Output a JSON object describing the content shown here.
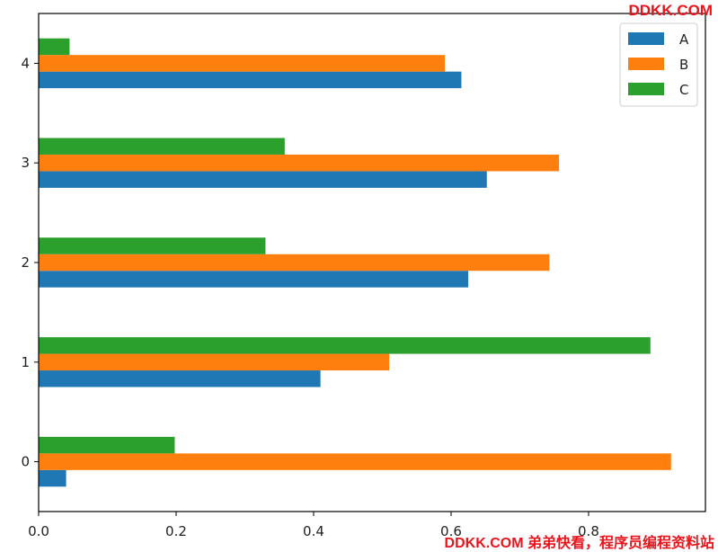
{
  "chart_data": {
    "type": "bar",
    "orientation": "horizontal",
    "categories": [
      "0",
      "1",
      "2",
      "3",
      "4"
    ],
    "series": [
      {
        "name": "A",
        "color": "#1f77b4",
        "values": [
          0.04,
          0.41,
          0.625,
          0.652,
          0.615
        ]
      },
      {
        "name": "B",
        "color": "#ff7f0e",
        "values": [
          0.92,
          0.51,
          0.743,
          0.757,
          0.591
        ]
      },
      {
        "name": "C",
        "color": "#2ca02c",
        "values": [
          0.198,
          0.89,
          0.33,
          0.358,
          0.045
        ]
      }
    ],
    "xlim": [
      0,
      0.97
    ],
    "xticks": [
      "0.0",
      "0.2",
      "0.4",
      "0.6",
      "0.8"
    ],
    "xtick_values": [
      0.0,
      0.2,
      0.4,
      0.6,
      0.8
    ],
    "legend_position": "top-right",
    "grid": false
  },
  "watermark": {
    "top": "DDKK.COM",
    "bottom": "DDKK.COM 弟弟快看，程序员编程资料站"
  }
}
